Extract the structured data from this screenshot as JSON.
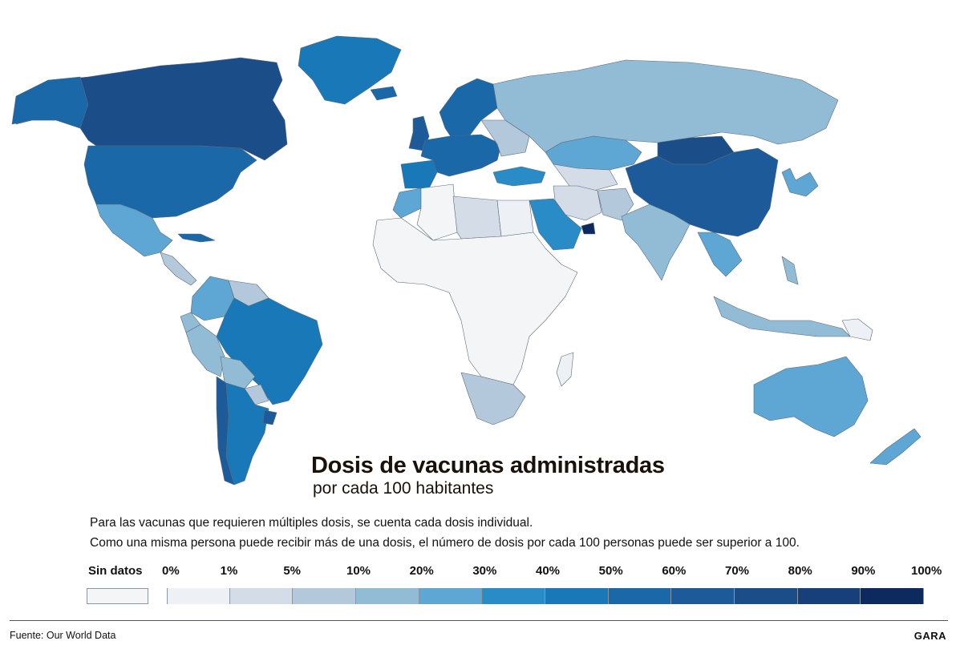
{
  "title": "Dosis de vacunas administradas",
  "subtitle": "por cada 100 habitantes",
  "notes": [
    "Para las vacunas que requieren múltiples dosis, se cuenta cada dosis individual.",
    "Como una misma persona puede recibir más de una dosis, el número de dosis por cada 100 personas puede ser superior a 100."
  ],
  "legend": {
    "nodata_label": "Sin datos",
    "nodata_color": "#f4f5f6",
    "ticks": [
      "0%",
      "1%",
      "5%",
      "10%",
      "20%",
      "30%",
      "40%",
      "50%",
      "60%",
      "70%",
      "80%",
      "90%",
      "100%"
    ],
    "colors": [
      "#edf0f4",
      "#d3dce7",
      "#b4c8db",
      "#92bcd6",
      "#5ea6d4",
      "#2a8cc6",
      "#1878b8",
      "#1a68a8",
      "#1c5a99",
      "#1b4d88",
      "#17407a",
      "#0d2a5f"
    ]
  },
  "source": "Fuente:  Our World Data",
  "brand": "GARA",
  "map_data": [
    {
      "name": "Canada",
      "value": "70%"
    },
    {
      "name": "United States",
      "value": "50%"
    },
    {
      "name": "Mexico",
      "value": "20%"
    },
    {
      "name": "Greenland",
      "value": "40%"
    },
    {
      "name": "Brazil",
      "value": "40%"
    },
    {
      "name": "Argentina",
      "value": "40%"
    },
    {
      "name": "Chile",
      "value": "60%"
    },
    {
      "name": "Uruguay",
      "value": "60%"
    },
    {
      "name": "Peru",
      "value": "20%"
    },
    {
      "name": "Bolivia",
      "value": "10%"
    },
    {
      "name": "Colombia",
      "value": "20%"
    },
    {
      "name": "Venezuela",
      "value": "10%"
    },
    {
      "name": "Ecuador",
      "value": "10%"
    },
    {
      "name": "Paraguay",
      "value": "10%"
    },
    {
      "name": "Russia",
      "value": "10%"
    },
    {
      "name": "China",
      "value": "60%"
    },
    {
      "name": "Mongolia",
      "value": "70%"
    },
    {
      "name": "India",
      "value": "10%"
    },
    {
      "name": "Kazakhstan",
      "value": "20%"
    },
    {
      "name": "Saudi Arabia",
      "value": "30%"
    },
    {
      "name": "United Arab Emirates",
      "value": "90%"
    },
    {
      "name": "Turkey",
      "value": "30%"
    },
    {
      "name": "Iran",
      "value": "5%"
    },
    {
      "name": "Australia",
      "value": "20%"
    },
    {
      "name": "Indonesia",
      "value": "10%"
    },
    {
      "name": "Japan",
      "value": "20%"
    },
    {
      "name": "New Zealand",
      "value": "20%"
    },
    {
      "name": "Morocco",
      "value": "20%"
    },
    {
      "name": "Algeria",
      "value": "1%"
    },
    {
      "name": "Libya",
      "value": "5%"
    },
    {
      "name": "Egypt",
      "value": "1%"
    },
    {
      "name": "Sub-Saharan Africa",
      "value": "0%"
    },
    {
      "name": "South Africa",
      "value": "5%"
    },
    {
      "name": "Madagascar",
      "value": "0%"
    },
    {
      "name": "Europe",
      "value": "50%"
    },
    {
      "name": "United Kingdom",
      "value": "60%"
    },
    {
      "name": "Scandinavia",
      "value": "50%"
    },
    {
      "name": "Iberia",
      "value": "50%"
    },
    {
      "name": "Ukraine",
      "value": "5%"
    }
  ]
}
